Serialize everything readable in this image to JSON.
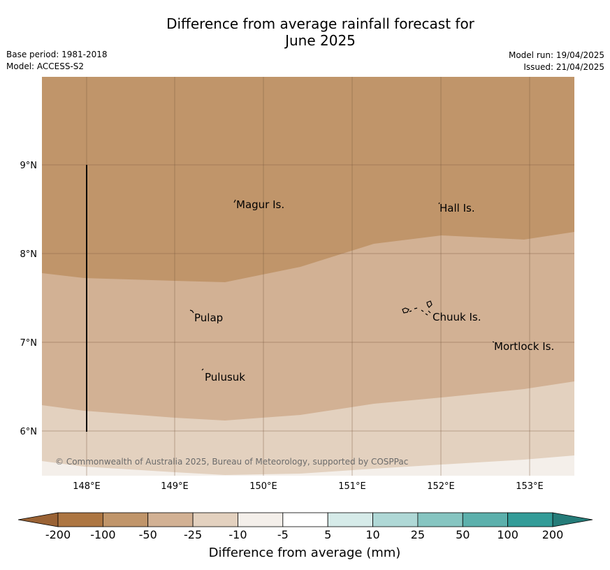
{
  "header": {
    "title_line1": "Difference from average rainfall forecast for",
    "title_line2": "June 2025",
    "base_period": "Base period: 1981-2018",
    "model": "Model: ACCESS-S2",
    "model_run": "Model run: 19/04/2025",
    "issued": "Issued: 21/04/2025"
  },
  "map": {
    "lon_labels": [
      "148°E",
      "149°E",
      "150°E",
      "151°E",
      "152°E",
      "153°E"
    ],
    "lat_labels": [
      "9°N",
      "8°N",
      "7°N",
      "6°N"
    ],
    "places": [
      {
        "key": "magur",
        "label": "Magur Is."
      },
      {
        "key": "hall",
        "label": "Hall Is."
      },
      {
        "key": "pulap",
        "label": "Pulap"
      },
      {
        "key": "chuuk",
        "label": "Chuuk Is."
      },
      {
        "key": "mortlock",
        "label": "Mortlock Is."
      },
      {
        "key": "pulusuk",
        "label": "Pulusuk"
      }
    ],
    "copyright": "© Commonwealth of Australia 2025, Bureau of Meteorology, supported by COSPPac",
    "colors": {
      "band_minus100_to_minus50": "#c0956a",
      "band_minus50_to_minus25": "#d2b194",
      "band_minus25_to_minus10": "#e3d1bf",
      "band_minus10_to_minus5": "#f4efea"
    }
  },
  "colorbar": {
    "ticks": [
      "-200",
      "-100",
      "-50",
      "-25",
      "-10",
      "-5",
      "5",
      "10",
      "25",
      "50",
      "100",
      "200"
    ],
    "colors": [
      "#ad7642",
      "#c0956a",
      "#d2b194",
      "#e3d1bf",
      "#f4efea",
      "#ffffff",
      "#d6ebe9",
      "#afd8d6",
      "#86c5c1",
      "#5cb0ac",
      "#339c98"
    ],
    "low_extend_color": "#9a6234",
    "high_extend_color": "#257c79",
    "label": "Difference from average (mm)"
  }
}
